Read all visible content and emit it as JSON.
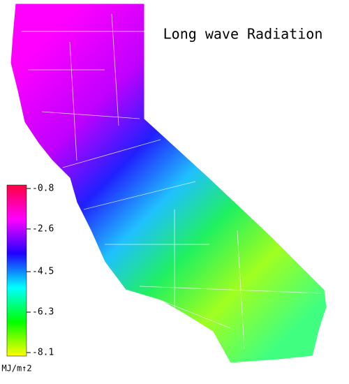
{
  "map": {
    "title": "Long wave Radiation",
    "colorbar": {
      "lim": [
        -8.1,
        -0.8
      ],
      "ticks": [
        -0.8,
        -2.6,
        -4.5,
        -6.3,
        -8.1
      ],
      "unit": "MJ/m↑2",
      "colors": [
        "#ff0040",
        "#ff00ff",
        "#2000ff",
        "#00ffff",
        "#00ff00",
        "#ffff00"
      ]
    }
  }
}
